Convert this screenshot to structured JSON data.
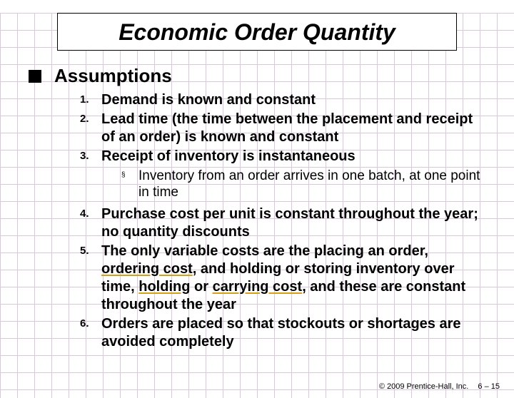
{
  "title": "Economic Order Quantity",
  "section_heading": "Assumptions",
  "items": {
    "n1": {
      "marker": "1.",
      "text": "Demand is known and constant"
    },
    "n2": {
      "marker": "2.",
      "text": "Lead time (the time between the placement and receipt of an order) is known and constant"
    },
    "n3": {
      "marker": "3.",
      "text": "Receipt of inventory is instantaneous"
    },
    "sub": {
      "marker": "§",
      "text": "Inventory from an order arrives in one batch, at one point in time"
    },
    "n4": {
      "marker": "4.",
      "text": "Purchase cost per unit is constant throughout the year; no quantity discounts"
    },
    "n5": {
      "marker": "5.",
      "pre": "The only variable costs are the placing an order, ",
      "term1": "ordering cost",
      "mid1": ", and holding or storing inventory over time, ",
      "term2": "holding",
      "mid2": " or ",
      "term3": "carrying cost",
      "post": ", and these are constant throughout the year"
    },
    "n6": {
      "marker": "6.",
      "text": "Orders are placed so that stockouts or shortages are avoided completely"
    }
  },
  "footer": {
    "copyright": "© 2009 Prentice-Hall, Inc.",
    "page": "6 – 15"
  },
  "colors": {
    "grid": "#d9c8d9",
    "title_border": "#000000",
    "bullet": "#000000",
    "underline": "#d4a017",
    "background": "#ffffff"
  }
}
